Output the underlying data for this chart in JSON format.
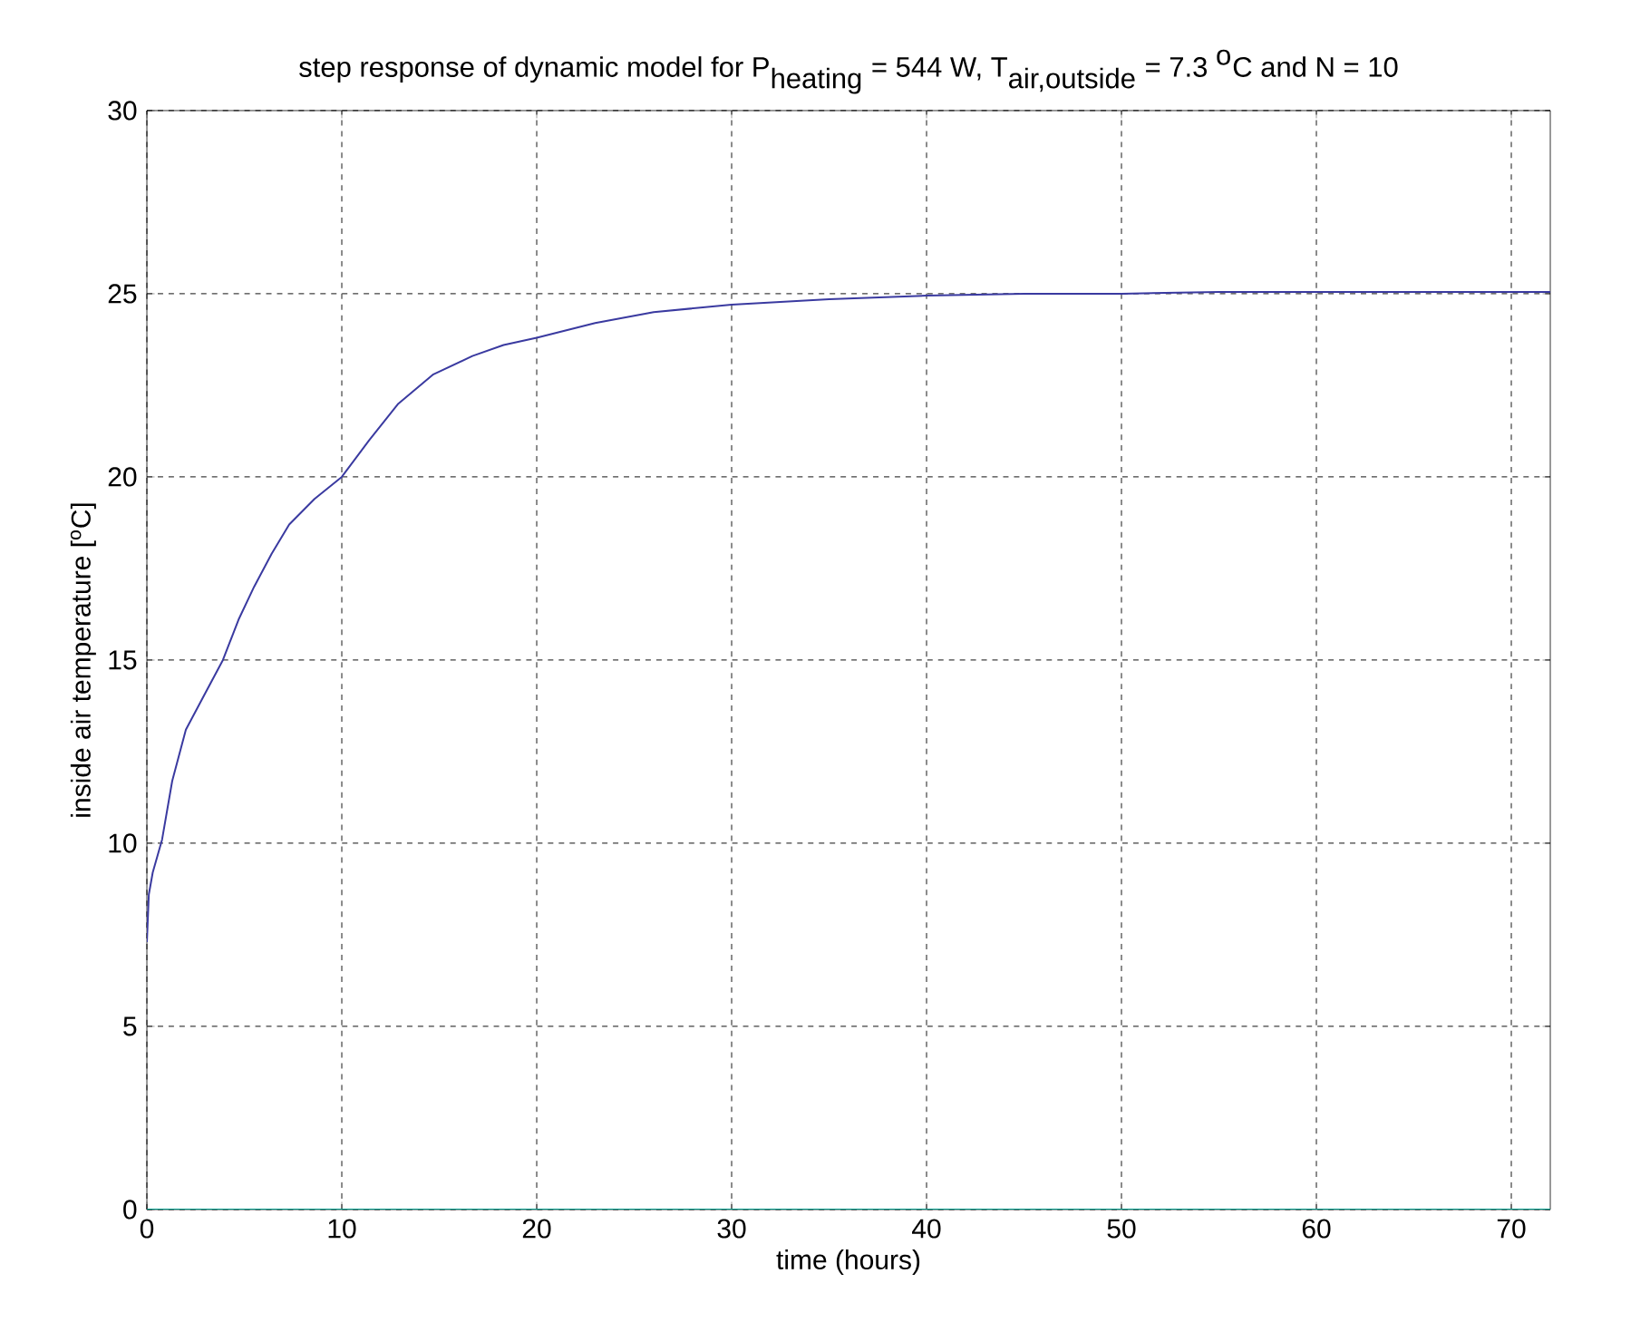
{
  "chart_data": {
    "type": "line",
    "title": "\\mbox{step response of dynamic model for P}_{\\mbox{heating}}\\mbox{ = 544 W, T}_{\\mbox{air,outside}}\\mbox{ = 7.3 }^{\\mbox{o}}\\mbox{C and N = 10}",
    "xlabel": "time (hours)",
    "ylabel": "inside air temperature [$^{o}$C]",
    "xlim": [
      0,
      72
    ],
    "ylim": [
      0,
      30
    ],
    "xticks": [
      0,
      10,
      20,
      30,
      40,
      50,
      60,
      70
    ],
    "yticks": [
      0,
      5,
      10,
      15,
      20,
      25,
      30
    ],
    "grid": true,
    "line_style": "solid",
    "marker": "none",
    "series": [
      {
        "color": "#3a3aa0",
        "x": [
          0,
          0.1,
          0.3,
          0.78,
          1.3,
          2.0,
          3.0,
          3.9,
          4.7,
          5.5,
          6.4,
          7.3,
          8.6,
          10,
          11.4,
          12.9,
          14.7,
          16.7,
          18.3,
          20,
          23,
          26,
          30,
          35,
          40,
          45,
          50,
          55,
          60,
          65,
          72
        ],
        "values": [
          7.3,
          8.6,
          9.2,
          10.1,
          11.7,
          13.1,
          14.1,
          15.0,
          16.1,
          17.0,
          17.9,
          18.7,
          19.4,
          20.0,
          21.0,
          22.0,
          22.8,
          23.3,
          23.6,
          23.8,
          24.2,
          24.5,
          24.7,
          24.85,
          24.95,
          25.0,
          25.0,
          25.05,
          25.05,
          25.05,
          25.05
        ]
      },
      {
        "color": "#009b8a",
        "x": [
          0,
          72
        ],
        "values": [
          0,
          0
        ]
      }
    ]
  }
}
